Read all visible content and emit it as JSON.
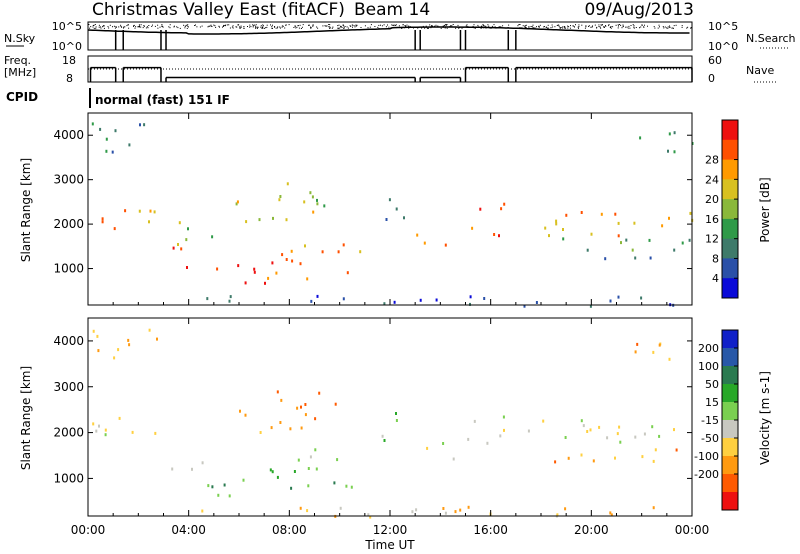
{
  "header": {
    "title": "Christmas Valley East (fitACF)",
    "beam": "Beam 14",
    "date": "09/Aug/2013"
  },
  "nsky_panel": {
    "left_label": "N.Sky",
    "right_label": "N.Search",
    "left_ticks": [
      "10^5",
      "10^0"
    ],
    "right_ticks": [
      "10^5",
      "10^0"
    ]
  },
  "freq_panel": {
    "left_label_1": "Freq.",
    "left_label_2": "[MHz]",
    "right_label": "Nave",
    "left_ticks": [
      "18",
      "8"
    ],
    "right_ticks": [
      "60",
      "0"
    ],
    "freq_high_mhz": 16,
    "freq_low_mhz": 10.5,
    "nave_level": 30
  },
  "cpid": {
    "label": "CPID",
    "value": "normal (fast) 151 IF"
  },
  "chart_data": [
    {
      "type": "heatmap",
      "name": "power",
      "xlabel": "",
      "ylabel": "Slant Range [km]",
      "x_hours": [
        0,
        24
      ],
      "ylim_km": [
        180,
        4500
      ],
      "y_ticks": [
        1000,
        2000,
        3000,
        4000
      ],
      "colorbar_label": "Power [dB]",
      "colorbar_ticks": [
        "4",
        "8",
        "12",
        "16",
        "20",
        "24",
        "28"
      ],
      "colors": [
        "#0a0ad8",
        "#2a50a8",
        "#3e7a6a",
        "#2f9a48",
        "#8ab83a",
        "#d8c020",
        "#ff9a00",
        "#ff5000",
        "#ee1010"
      ],
      "echo_regions": [
        {
          "t0": 0.05,
          "t1": 1.5,
          "r0": 1800,
          "r1": 2400,
          "level": 7
        },
        {
          "t0": 1.5,
          "t1": 2.9,
          "r0": 1700,
          "r1": 2400,
          "level": 6
        },
        {
          "t0": 0.0,
          "t1": 2.8,
          "r0": 3650,
          "r1": 4350,
          "level": 2
        },
        {
          "t0": 3.1,
          "t1": 4.6,
          "r0": 1050,
          "r1": 1500,
          "level": 7
        },
        {
          "t0": 3.2,
          "t1": 5.2,
          "r0": 1500,
          "r1": 2100,
          "level": 4
        },
        {
          "t0": 4.6,
          "t1": 7.0,
          "r0": 650,
          "r1": 1200,
          "level": 8
        },
        {
          "t0": 7.0,
          "t1": 10.8,
          "r0": 800,
          "r1": 1450,
          "level": 7
        },
        {
          "t0": 8.0,
          "t1": 10.8,
          "r0": 1400,
          "r1": 1700,
          "level": 6
        },
        {
          "t0": 5.8,
          "t1": 9.2,
          "r0": 2000,
          "r1": 2600,
          "level": 5
        },
        {
          "t0": 7.2,
          "t1": 10.0,
          "r0": 2400,
          "r1": 2950,
          "level": 4
        },
        {
          "t0": 11.4,
          "t1": 12.6,
          "r0": 1800,
          "r1": 2600,
          "level": 2
        },
        {
          "t0": 13.0,
          "t1": 14.7,
          "r0": 1400,
          "r1": 1850,
          "level": 7
        },
        {
          "t0": 15.0,
          "t1": 16.7,
          "r0": 1700,
          "r1": 2500,
          "level": 7
        },
        {
          "t0": 17.3,
          "t1": 24.0,
          "r0": 1750,
          "r1": 2300,
          "level": 6
        },
        {
          "t0": 18.2,
          "t1": 24.0,
          "r0": 1350,
          "r1": 1700,
          "level": 3
        },
        {
          "t0": 18.5,
          "t1": 23.0,
          "r0": 1200,
          "r1": 1350,
          "level": 2
        },
        {
          "t0": 4.5,
          "t1": 24.0,
          "r0": 180,
          "r1": 420,
          "level": 1
        },
        {
          "t0": 21.5,
          "t1": 24.0,
          "r0": 3600,
          "r1": 4100,
          "level": 2
        }
      ]
    },
    {
      "type": "heatmap",
      "name": "velocity",
      "xlabel": "Time UT",
      "ylabel": "Slant Range [km]",
      "x_hours": [
        0,
        24
      ],
      "ylim_km": [
        180,
        4500
      ],
      "y_ticks": [
        1000,
        2000,
        3000,
        4000
      ],
      "x_tick_labels": [
        "00:00",
        "04:00",
        "08:00",
        "12:00",
        "16:00",
        "20:00",
        "00:00"
      ],
      "colorbar_label": "Velocity [m s-1]",
      "colorbar_ticks": [
        "200",
        "100",
        "50",
        "15",
        "-15",
        "-50",
        "-100",
        "-200"
      ],
      "colors": [
        "#1020c8",
        "#2858a8",
        "#2a7a50",
        "#28a828",
        "#7ad050",
        "#c8c8c0",
        "#ffd040",
        "#ff9a10",
        "#ff5a00",
        "#ee1010"
      ],
      "echo_regions": [
        {
          "t0": 0.05,
          "t1": 2.9,
          "r0": 1800,
          "r1": 2400,
          "level": 5
        },
        {
          "t0": 0.0,
          "t1": 2.8,
          "r0": 3650,
          "r1": 4350,
          "level": 7
        },
        {
          "t0": 3.1,
          "t1": 4.6,
          "r0": 1050,
          "r1": 1500,
          "level": 6
        },
        {
          "t0": 4.6,
          "t1": 7.0,
          "r0": 650,
          "r1": 1200,
          "level": 3
        },
        {
          "t0": 7.0,
          "t1": 10.8,
          "r0": 800,
          "r1": 1450,
          "level": 3
        },
        {
          "t0": 8.0,
          "t1": 10.8,
          "r0": 1400,
          "r1": 1700,
          "level": 4
        },
        {
          "t0": 5.8,
          "t1": 9.2,
          "r0": 2000,
          "r1": 2600,
          "level": 7
        },
        {
          "t0": 7.2,
          "t1": 10.0,
          "r0": 2400,
          "r1": 2950,
          "level": 8
        },
        {
          "t0": 11.4,
          "t1": 12.6,
          "r0": 1800,
          "r1": 2600,
          "level": 4
        },
        {
          "t0": 13.0,
          "t1": 14.7,
          "r0": 1400,
          "r1": 1850,
          "level": 5
        },
        {
          "t0": 15.0,
          "t1": 16.7,
          "r0": 1700,
          "r1": 2500,
          "level": 5
        },
        {
          "t0": 17.3,
          "t1": 24.0,
          "r0": 1750,
          "r1": 2300,
          "level": 5
        },
        {
          "t0": 18.2,
          "t1": 24.0,
          "r0": 1350,
          "r1": 1700,
          "level": 7
        },
        {
          "t0": 4.5,
          "t1": 24.0,
          "r0": 180,
          "r1": 420,
          "level": 6
        },
        {
          "t0": 21.5,
          "t1": 24.0,
          "r0": 3600,
          "r1": 4100,
          "level": 7
        }
      ]
    }
  ]
}
